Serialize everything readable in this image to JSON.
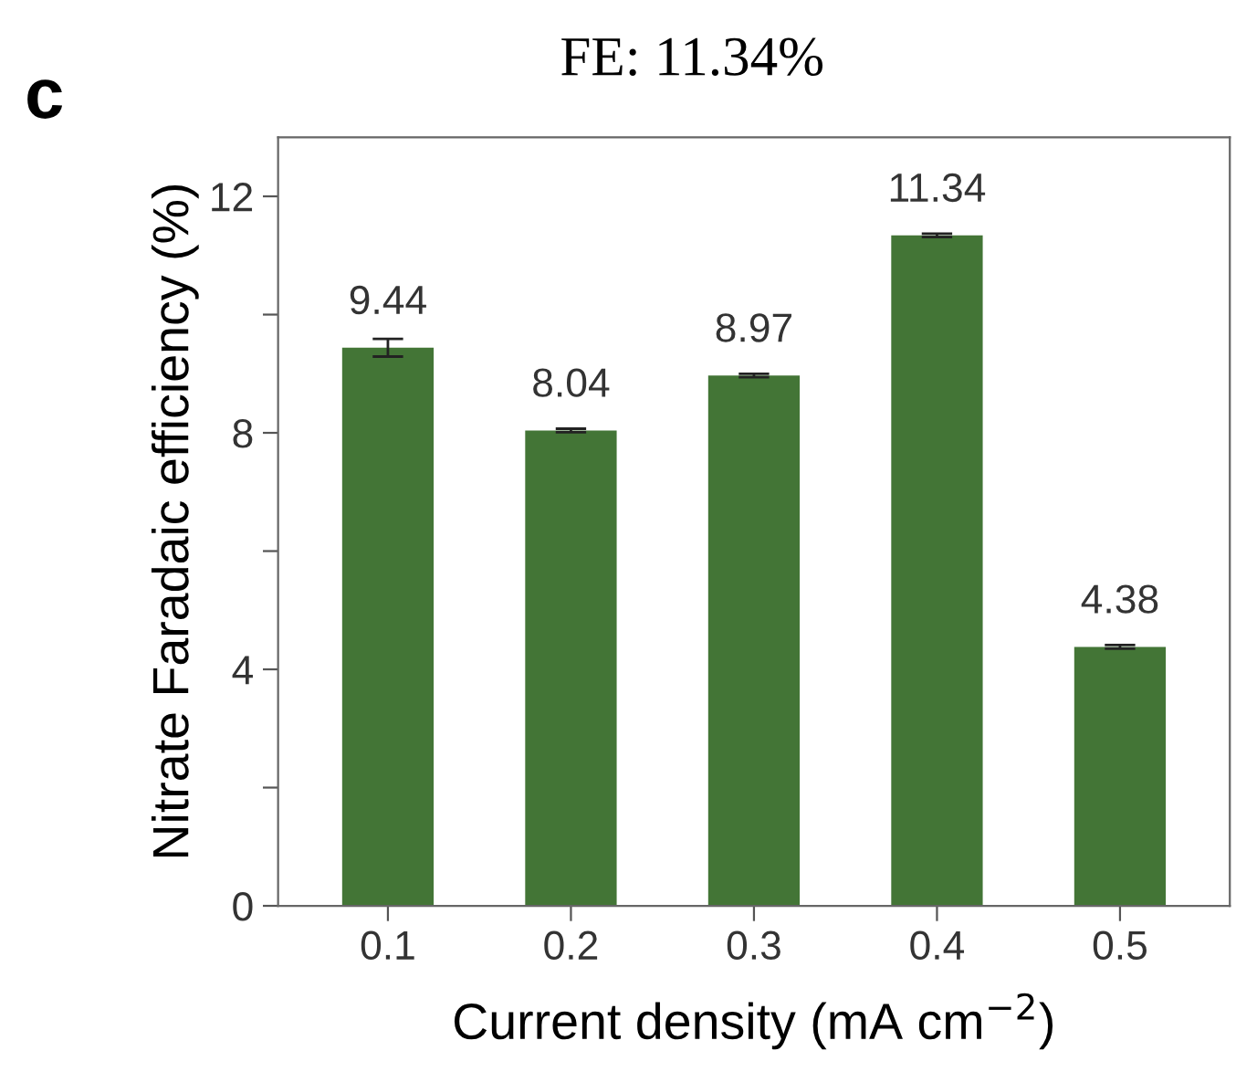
{
  "chart_data": {
    "type": "bar",
    "title": "FE: 11.34%",
    "xlabel": "Current density (mA cm$^{−2}$)",
    "ylabel": "Nitrate Faradaic efficiency (%)",
    "annotations": [
      "c"
    ],
    "categories": [
      "0.1",
      "0.2",
      "0.3",
      "0.4",
      "0.5"
    ],
    "values": [
      9.44,
      8.04,
      8.97,
      11.34,
      4.38
    ],
    "errors": [
      0.15,
      0.03,
      0.03,
      0.03,
      0.03
    ],
    "color": "#437536",
    "data_labels": true,
    "ylim": [
      0,
      13
    ],
    "yticks": [
      0,
      {
        "value": 2,
        "label": null
      },
      4,
      {
        "value": 6,
        "label": null
      },
      8,
      {
        "value": 10,
        "label": null
      },
      12
    ],
    "grid": false,
    "legend": false
  }
}
